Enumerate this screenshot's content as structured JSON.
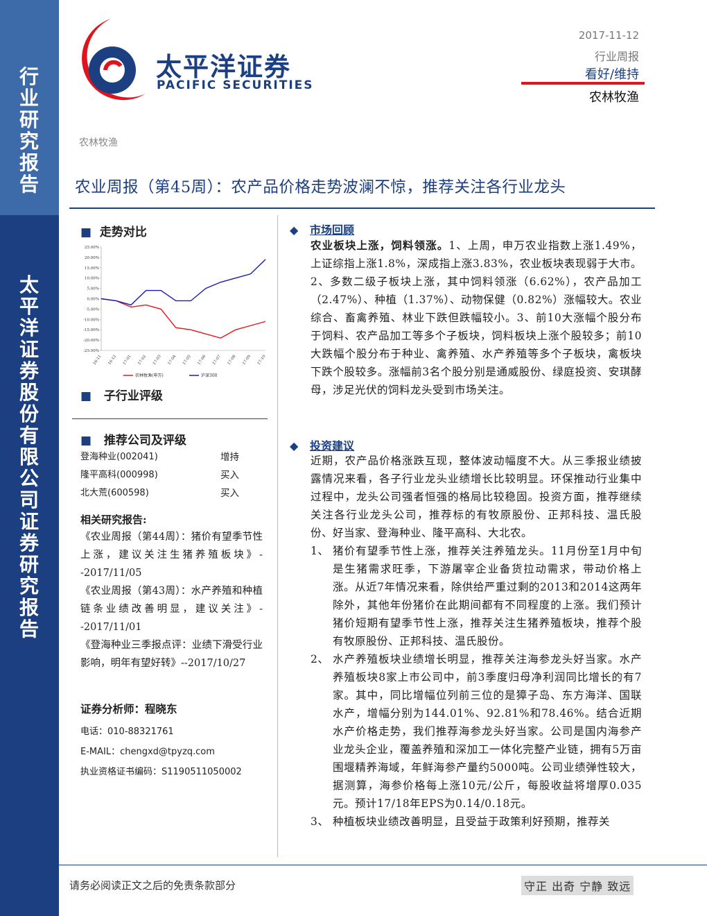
{
  "sidebar": {
    "top": "行业研究报告",
    "bottom": "太平洋证券股份有限公司证券研究报告"
  },
  "header": {
    "logo_cn": "太平洋证券",
    "logo_en": "PACIFIC SECURITIES",
    "date": "2017-11-12",
    "report_type": "行业周报",
    "rating": "看好/维持",
    "industry": "农林牧渔"
  },
  "breadcrumb": "农林牧渔",
  "title": "农业周报（第45周）：农产品价格走势波澜不惊，推荐关注各行业龙头",
  "left": {
    "trend_heading": "走势对比",
    "sub_rating_heading": "子行业评级",
    "picks_heading": "推荐公司及评级",
    "picks": [
      [
        "登海种业(002041)",
        "增持"
      ],
      [
        "隆平高科(000998)",
        "买入"
      ],
      [
        "北大荒(600598)",
        "买入"
      ]
    ],
    "reports_heading": "相关研究报告:",
    "reports": [
      "《农业周报（第44周）：猪价有望季节性上涨，建议关注生猪养殖板块》--2017/11/05",
      "《农业周报（第43周）：水产养殖和种植链条业绩改善明显，建议关注》--2017/11/01",
      "《登海种业三季报点评：业绩下滑受行业影响，明年有望好转》--2017/10/27"
    ],
    "analyst": "证券分析师：程晓东",
    "contacts": [
      "电话：010-88321761",
      "E-MAIL：chengxd@tpyzq.com",
      "执业资格证书编码：S1190511050002"
    ]
  },
  "chart_data": {
    "type": "line",
    "categories": [
      "16-11",
      "16-12",
      "17-01",
      "17-02",
      "17-03",
      "17-04",
      "17-05",
      "17-06",
      "17-07",
      "17-08",
      "17-09",
      "17-10"
    ],
    "series": [
      {
        "name": "农林牧渔(申万)",
        "color": "#e8161b",
        "values": [
          0,
          -1,
          -4,
          -3,
          -5,
          -14,
          -15,
          -17,
          -19,
          -15,
          -13,
          -11
        ]
      },
      {
        "name": "沪深300",
        "color": "#1b1bb0",
        "values": [
          0,
          -1,
          -3,
          4,
          4,
          -1,
          -1,
          5,
          8,
          10,
          12,
          19
        ]
      }
    ],
    "ylim": [
      -25,
      25
    ],
    "yticks": [
      {
        "value": 25,
        "label": "25.00%"
      },
      {
        "value": 20,
        "label": "20.00%"
      },
      {
        "value": 15,
        "label": "15.00%"
      },
      {
        "value": 10,
        "label": "10.00%"
      },
      {
        "value": 5,
        "label": "5.00%"
      },
      {
        "value": 0,
        "label": "0.00%"
      },
      {
        "value": -5,
        "label": "-5.00%"
      },
      {
        "value": -10,
        "label": "-10.00%"
      },
      {
        "value": -15,
        "label": "-15.00%"
      },
      {
        "value": -20,
        "label": "-20.00%"
      },
      {
        "value": -25,
        "label": "-25.00%"
      }
    ]
  },
  "right": {
    "market_heading": "市场回顾",
    "market_lead": "农业板块上涨，饲料领涨。",
    "market_body": "1、上周，申万农业指数上涨1.49%，上证综指上涨1.8%，深成指上涨3.83%，农业板块表现弱于大市。2、多数二级子板块上涨，其中饲料领涨（6.62%），农产品加工（2.47%）、种植（1.37%）、动物保健（0.82%）涨幅较大。农业综合、畜禽养殖、林业下跌但跌幅较小。3、前10大涨幅个股分布于饲料、农产品加工等多个子板块，饲料板块上涨个股较多；前10大跌幅个股分布于种业、禽养殖、水产养殖等多个子板块，禽板块下跌个股较多。涨幅前3名个股分别是通威股份、绿庭投资、安琪酵母，涉足光伏的饲料龙头受到市场关注。",
    "invest_heading": "投资建议",
    "invest_intro": "近期，农产品价格涨跌互现，整体波动幅度不大。从三季报业绩披露情况来看，各子行业龙头业绩增长比较明显。环保推动行业集中过程中，龙头公司强者恒强的格局比较稳固。投资方面，推荐继续关注各行业龙头公司，推荐标的有牧原股份、正邦科技、温氏股份、好当家、登海种业、隆平高科、大北农。",
    "invest_items": [
      [
        "1、",
        "猪价有望季节性上涨，推荐关注养殖龙头。11月份至1月中旬是生猪需求旺季，下游屠宰企业备货拉动需求，带动价格上涨。从近7年情况来看，除供给严重过剩的2013和2014这两年除外，其他年份猪价在此期间都有不同程度的上涨。我们预计猪价短期有望季节性上涨，推荐关注生猪养殖板块，推荐个股有牧原股份、正邦科技、温氏股份。"
      ],
      [
        "2、",
        "水产养殖板块业绩增长明显，推荐关注海参龙头好当家。水产养殖板块8家上市公司中，前3季度归母净利润同比增长的有7家。其中，同比增幅位列前三位的是獐子岛、东方海洋、国联水产，增幅分别为144.01%、92.81%和78.46%。结合近期水产价格走势，我们推荐海参龙头好当家。公司是国内海参产业龙头企业，覆盖养殖和深加工一体化完整产业链，拥有5万亩围堰精养海域，年鲜海参产量约5000吨。公司业绩弹性较大，据测算，海参价格每上涨10元/公斤，每股收益将增厚0.035元。预计17/18年EPS为0.14/0.18元。"
      ],
      [
        "3、",
        "种植板块业绩改善明显，且受益于政策利好预期，推荐关"
      ]
    ]
  },
  "footer": {
    "disclaimer": "请务必阅读正文之后的免责条款部分",
    "motto": "守正 出奇 宁静 致远"
  }
}
